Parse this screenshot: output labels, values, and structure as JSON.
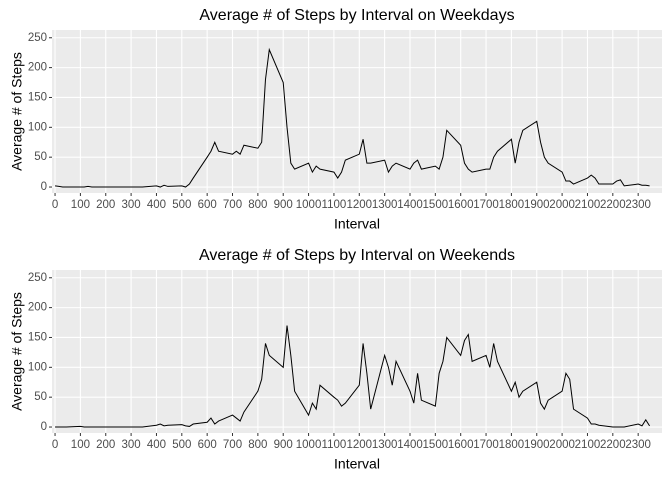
{
  "chart_data": [
    {
      "type": "line",
      "title": "Average # of Steps by Interval on Weekdays",
      "xlabel": "Interval",
      "ylabel": "Average # of Steps",
      "color": "#000000",
      "grid": true,
      "x": [
        0,
        15,
        30,
        45,
        100,
        115,
        130,
        145,
        200,
        215,
        230,
        245,
        300,
        315,
        330,
        345,
        400,
        415,
        430,
        445,
        500,
        515,
        530,
        545,
        600,
        615,
        630,
        645,
        700,
        715,
        730,
        745,
        800,
        815,
        830,
        845,
        900,
        915,
        930,
        945,
        1000,
        1015,
        1030,
        1045,
        1100,
        1115,
        1130,
        1145,
        1200,
        1215,
        1230,
        1245,
        1300,
        1315,
        1330,
        1345,
        1400,
        1415,
        1430,
        1445,
        1500,
        1515,
        1530,
        1545,
        1600,
        1615,
        1630,
        1645,
        1700,
        1715,
        1730,
        1745,
        1800,
        1815,
        1830,
        1845,
        1900,
        1915,
        1930,
        1945,
        2000,
        2015,
        2030,
        2045,
        2100,
        2115,
        2130,
        2145,
        2200,
        2215,
        2230,
        2245,
        2300,
        2315,
        2330,
        2345
      ],
      "values": [
        2,
        1,
        0,
        0,
        0,
        0,
        1,
        0,
        0,
        0,
        0,
        0,
        0,
        0,
        0,
        0,
        2,
        0,
        3,
        1,
        2,
        0,
        5,
        15,
        50,
        60,
        75,
        60,
        55,
        60,
        55,
        70,
        65,
        75,
        180,
        230,
        175,
        100,
        40,
        30,
        40,
        25,
        35,
        30,
        25,
        15,
        25,
        45,
        55,
        80,
        40,
        40,
        45,
        25,
        35,
        40,
        30,
        40,
        45,
        30,
        35,
        30,
        50,
        95,
        70,
        40,
        30,
        25,
        30,
        30,
        50,
        60,
        80,
        40,
        75,
        95,
        110,
        75,
        50,
        40,
        25,
        10,
        10,
        5,
        15,
        20,
        15,
        5,
        5,
        10,
        12,
        2,
        5,
        3,
        3,
        2
      ],
      "xlim": [
        -12,
        2394
      ],
      "xticks": [
        0,
        100,
        200,
        300,
        400,
        500,
        600,
        700,
        800,
        900,
        1000,
        1100,
        1200,
        1300,
        1400,
        1500,
        1600,
        1700,
        1800,
        1900,
        2000,
        2100,
        2200,
        2300
      ],
      "ylim": [
        -10,
        263
      ],
      "yticks": [
        0,
        50,
        100,
        150,
        200,
        250
      ]
    },
    {
      "type": "line",
      "title": "Average # of Steps by Interval on Weekends",
      "xlabel": "Interval",
      "ylabel": "Average # of Steps",
      "color": "#000000",
      "grid": true,
      "x": [
        0,
        15,
        30,
        45,
        100,
        115,
        130,
        145,
        200,
        215,
        230,
        245,
        300,
        315,
        330,
        345,
        400,
        415,
        430,
        445,
        500,
        515,
        530,
        545,
        600,
        615,
        630,
        645,
        700,
        715,
        730,
        745,
        800,
        815,
        830,
        845,
        900,
        915,
        930,
        945,
        1000,
        1015,
        1030,
        1045,
        1100,
        1115,
        1130,
        1145,
        1200,
        1215,
        1230,
        1245,
        1300,
        1315,
        1330,
        1345,
        1400,
        1415,
        1430,
        1445,
        1500,
        1515,
        1530,
        1545,
        1600,
        1615,
        1630,
        1645,
        1700,
        1715,
        1730,
        1745,
        1800,
        1815,
        1830,
        1845,
        1900,
        1915,
        1930,
        1945,
        2000,
        2015,
        2030,
        2045,
        2100,
        2115,
        2130,
        2145,
        2200,
        2215,
        2230,
        2245,
        2300,
        2315,
        2330,
        2345
      ],
      "values": [
        0,
        0,
        0,
        0,
        1,
        0,
        0,
        0,
        0,
        0,
        0,
        0,
        0,
        0,
        0,
        0,
        3,
        5,
        2,
        3,
        4,
        2,
        1,
        5,
        8,
        15,
        5,
        10,
        20,
        15,
        10,
        25,
        60,
        80,
        140,
        120,
        100,
        170,
        120,
        60,
        20,
        40,
        30,
        70,
        50,
        45,
        35,
        40,
        70,
        140,
        90,
        30,
        120,
        100,
        70,
        110,
        60,
        40,
        90,
        45,
        35,
        90,
        110,
        150,
        120,
        145,
        155,
        110,
        120,
        100,
        140,
        110,
        60,
        75,
        50,
        60,
        75,
        40,
        30,
        45,
        60,
        90,
        80,
        30,
        15,
        5,
        5,
        3,
        0,
        0,
        0,
        0,
        5,
        2,
        12,
        2
      ],
      "xlim": [
        -12,
        2394
      ],
      "xticks": [
        0,
        100,
        200,
        300,
        400,
        500,
        600,
        700,
        800,
        900,
        1000,
        1100,
        1200,
        1300,
        1400,
        1500,
        1600,
        1700,
        1800,
        1900,
        2000,
        2100,
        2200,
        2300
      ],
      "ylim": [
        -10,
        263
      ],
      "yticks": [
        0,
        50,
        100,
        150,
        200,
        250
      ]
    }
  ]
}
